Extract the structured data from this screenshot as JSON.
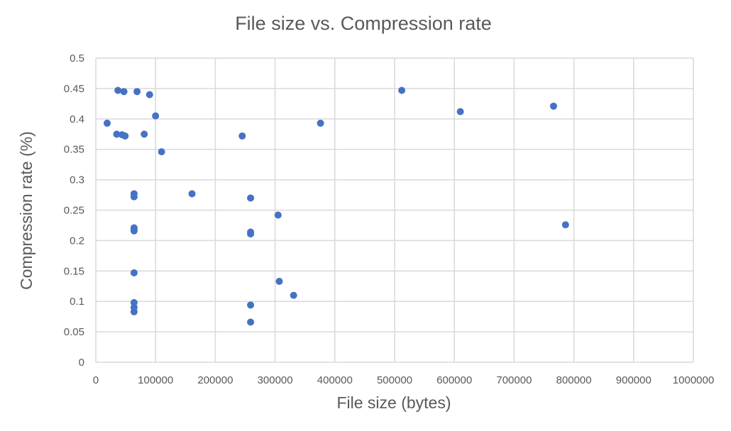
{
  "chart_data": {
    "type": "scatter",
    "title": "File size vs. Compression rate",
    "xlabel": "File size (bytes)",
    "ylabel": "Compression rate (%)",
    "xlim": [
      0,
      1000000
    ],
    "ylim": [
      0,
      0.5
    ],
    "xticks": [
      "0",
      "100000",
      "200000",
      "300000",
      "400000",
      "500000",
      "600000",
      "700000",
      "800000",
      "900000",
      "1000000"
    ],
    "yticks": [
      "0",
      "0.05",
      "0.1",
      "0.15",
      "0.2",
      "0.25",
      "0.3",
      "0.35",
      "0.4",
      "0.45",
      "0.5"
    ],
    "grid": true,
    "legend": "none",
    "marker_color": "#4472c4",
    "series": [
      {
        "points": [
          {
            "x": 19000,
            "y": 0.393
          },
          {
            "x": 37000,
            "y": 0.447
          },
          {
            "x": 47000,
            "y": 0.445
          },
          {
            "x": 69000,
            "y": 0.445
          },
          {
            "x": 90000,
            "y": 0.44
          },
          {
            "x": 35000,
            "y": 0.375
          },
          {
            "x": 44000,
            "y": 0.374
          },
          {
            "x": 49000,
            "y": 0.372
          },
          {
            "x": 81000,
            "y": 0.375
          },
          {
            "x": 100000,
            "y": 0.405
          },
          {
            "x": 110000,
            "y": 0.346
          },
          {
            "x": 64000,
            "y": 0.277
          },
          {
            "x": 64000,
            "y": 0.272
          },
          {
            "x": 64000,
            "y": 0.221
          },
          {
            "x": 64000,
            "y": 0.218
          },
          {
            "x": 64000,
            "y": 0.216
          },
          {
            "x": 64000,
            "y": 0.147
          },
          {
            "x": 64000,
            "y": 0.098
          },
          {
            "x": 64000,
            "y": 0.09
          },
          {
            "x": 64000,
            "y": 0.083
          },
          {
            "x": 161000,
            "y": 0.277
          },
          {
            "x": 245000,
            "y": 0.372
          },
          {
            "x": 259000,
            "y": 0.27
          },
          {
            "x": 259000,
            "y": 0.214
          },
          {
            "x": 259000,
            "y": 0.211
          },
          {
            "x": 259000,
            "y": 0.094
          },
          {
            "x": 259000,
            "y": 0.066
          },
          {
            "x": 305000,
            "y": 0.242
          },
          {
            "x": 307000,
            "y": 0.133
          },
          {
            "x": 331000,
            "y": 0.11
          },
          {
            "x": 376000,
            "y": 0.393
          },
          {
            "x": 512000,
            "y": 0.447
          },
          {
            "x": 610000,
            "y": 0.412
          },
          {
            "x": 766000,
            "y": 0.421
          },
          {
            "x": 786000,
            "y": 0.226
          }
        ]
      }
    ]
  }
}
